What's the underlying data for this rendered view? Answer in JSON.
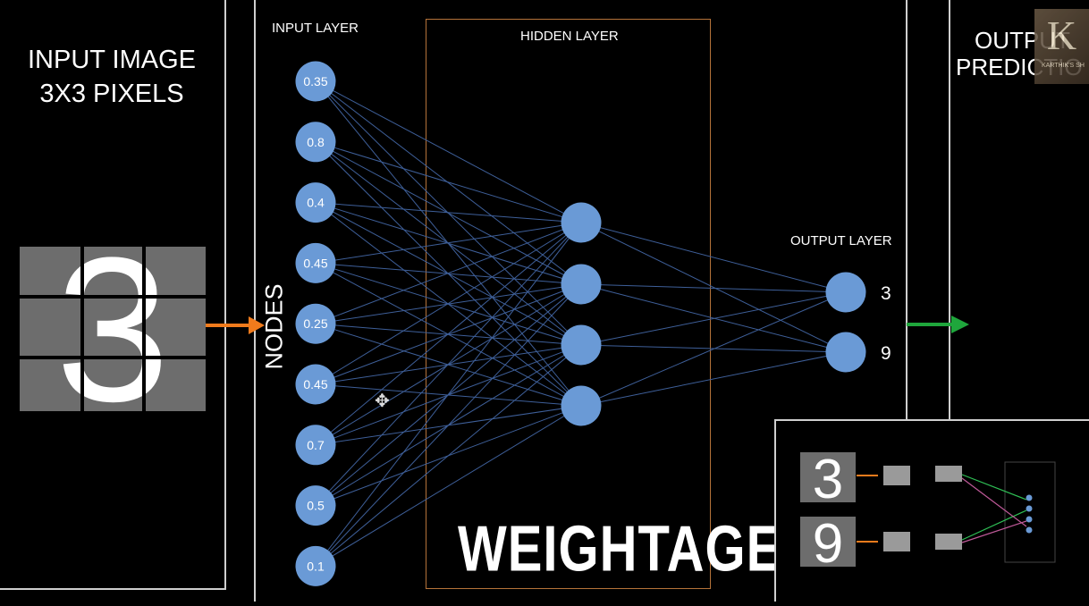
{
  "left_panel": {
    "title_line1": "INPUT IMAGE",
    "title_line2": "3X3 PIXELS",
    "digit": "3"
  },
  "network": {
    "input_layer_label": "INPUT LAYER",
    "hidden_layer_label": "HIDDEN LAYER",
    "output_layer_label": "OUTPUT LAYER",
    "nodes_label": "NODES",
    "weightage_label": "WEIGHTAGE",
    "input_values": [
      "0.35",
      "0.8",
      "0.4",
      "0.45",
      "0.25",
      "0.45",
      "0.7",
      "0.5",
      "0.1"
    ],
    "hidden_count": 4,
    "output_values": [
      "3",
      "9"
    ]
  },
  "right_panel": {
    "title_line1": "OUTPUT",
    "title_line2": "PREDICTIO",
    "logo_letter": "K",
    "logo_caption": "KARTHIK'S SH"
  },
  "inset": {
    "digit_top": "3",
    "digit_bottom": "9"
  },
  "colors": {
    "node": "#6a9ad6",
    "edge": "#3e5f99",
    "arrow_orange": "#f07b1c",
    "arrow_green": "#1fa63c",
    "hidden_box": "#b5733a",
    "pixel_gray": "#6d6d6d"
  }
}
